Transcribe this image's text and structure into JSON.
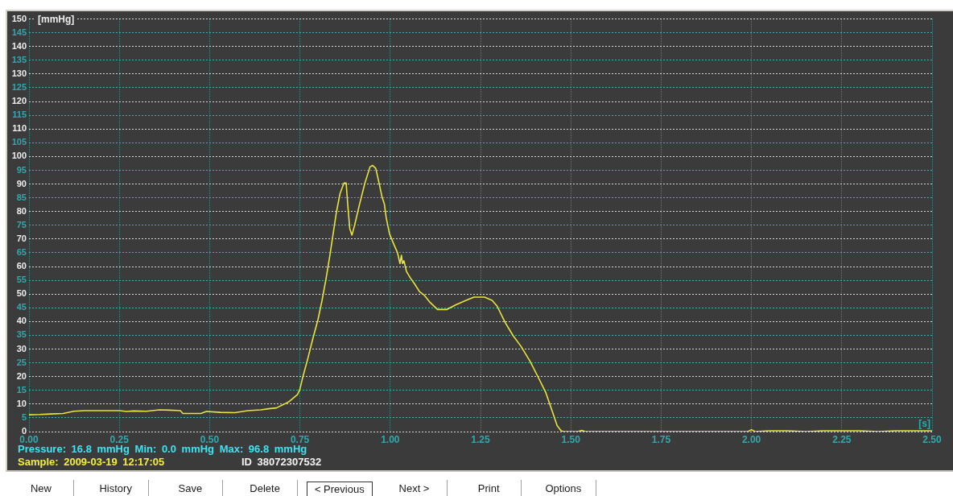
{
  "chart_data": {
    "type": "line",
    "xlabel": "[s]",
    "ylabel": "[mmHg]",
    "x": [
      0,
      0.03,
      0.06,
      0.095,
      0.124,
      0.153,
      0.19,
      0.25,
      0.27,
      0.29,
      0.325,
      0.361,
      0.39,
      0.419,
      0.426,
      0.476,
      0.491,
      0.53,
      0.57,
      0.606,
      0.642,
      0.663,
      0.685,
      0.707,
      0.721,
      0.743,
      0.75,
      0.757,
      0.771,
      0.786,
      0.8,
      0.811,
      0.822,
      0.833,
      0.843,
      0.851,
      0.861,
      0.872,
      0.878,
      0.883,
      0.888,
      0.894,
      0.901,
      0.915,
      0.93,
      0.944,
      0.951,
      0.96,
      0.969,
      0.977,
      0.984,
      0.989,
      0.998,
      1.009,
      1.02,
      1.027,
      1.031,
      1.034,
      1.038,
      1.045,
      1.056,
      1.067,
      1.081,
      1.095,
      1.11,
      1.131,
      1.157,
      1.182,
      1.21,
      1.232,
      1.261,
      1.282,
      1.296,
      1.318,
      1.34,
      1.362,
      1.387,
      1.408,
      1.43,
      1.448,
      1.462,
      1.473,
      1.48,
      1.52,
      1.53,
      1.54,
      1.99,
      2.0,
      2.01,
      2.05,
      2.1,
      2.15,
      2.2,
      2.3,
      2.35,
      2.4,
      2.5
    ],
    "series": [
      {
        "color": "#e8e43a",
        "values": [
          6.1,
          6.2,
          6.4,
          6.6,
          7.4,
          7.6,
          7.6,
          7.6,
          7.3,
          7.5,
          7.4,
          7.9,
          7.8,
          7.6,
          6.6,
          6.6,
          7.3,
          7.0,
          6.9,
          7.6,
          7.9,
          8.3,
          8.6,
          10.0,
          11.0,
          13.4,
          15.4,
          19.3,
          26.1,
          33.9,
          40.7,
          47.5,
          55.3,
          64.1,
          72.8,
          79.7,
          86.5,
          90.4,
          90.4,
          81.6,
          73.8,
          71.4,
          74.8,
          82.6,
          90.4,
          96.2,
          96.8,
          95.7,
          90.4,
          85.5,
          82.6,
          77.7,
          71.9,
          68.4,
          65.1,
          61.1,
          64.1,
          61.1,
          62.1,
          58.2,
          55.8,
          53.8,
          50.9,
          49.5,
          47.0,
          44.4,
          44.4,
          46.1,
          47.7,
          48.9,
          48.9,
          47.7,
          45.6,
          39.7,
          34.9,
          31.0,
          25.6,
          20.2,
          14.4,
          7.6,
          2.2,
          0.3,
          0,
          0,
          0.4,
          0,
          0,
          0.7,
          0,
          0.3,
          0.3,
          0,
          0.3,
          0.3,
          0,
          0.3,
          0.3
        ]
      }
    ],
    "xlim": [
      0,
      2.5
    ],
    "xticks": [
      {
        "value": 0,
        "label": "0.00"
      },
      {
        "value": 0.25,
        "label": "0.25"
      },
      {
        "value": 0.5,
        "label": "0.50"
      },
      {
        "value": 0.75,
        "label": "0.75"
      },
      {
        "value": 1,
        "label": "1.00"
      },
      {
        "value": 1.25,
        "label": "1.25"
      },
      {
        "value": 1.5,
        "label": "1.50"
      },
      {
        "value": 1.75,
        "label": "1.75"
      },
      {
        "value": 2,
        "label": "2.00"
      },
      {
        "value": 2.25,
        "label": "2.25"
      },
      {
        "value": 2.5,
        "label": "2.50"
      }
    ],
    "ylim": [
      0,
      150
    ],
    "yticks": [
      0,
      5,
      10,
      15,
      20,
      25,
      30,
      35,
      40,
      45,
      50,
      55,
      60,
      65,
      70,
      75,
      80,
      85,
      90,
      95,
      100,
      105,
      110,
      115,
      120,
      125,
      130,
      135,
      140,
      145,
      150
    ],
    "grid": true,
    "marker": "none",
    "annotations": [
      "Pressure: 16.8 mmHg Min: 0.0 mmHg Max: 96.8 mmHg",
      "Sample: 2009-03-19 12:17:05",
      "ID 38072307532",
      "New",
      "History",
      "Save",
      "Delete",
      "< Previous",
      "Next >",
      "Print",
      "Options"
    ]
  }
}
